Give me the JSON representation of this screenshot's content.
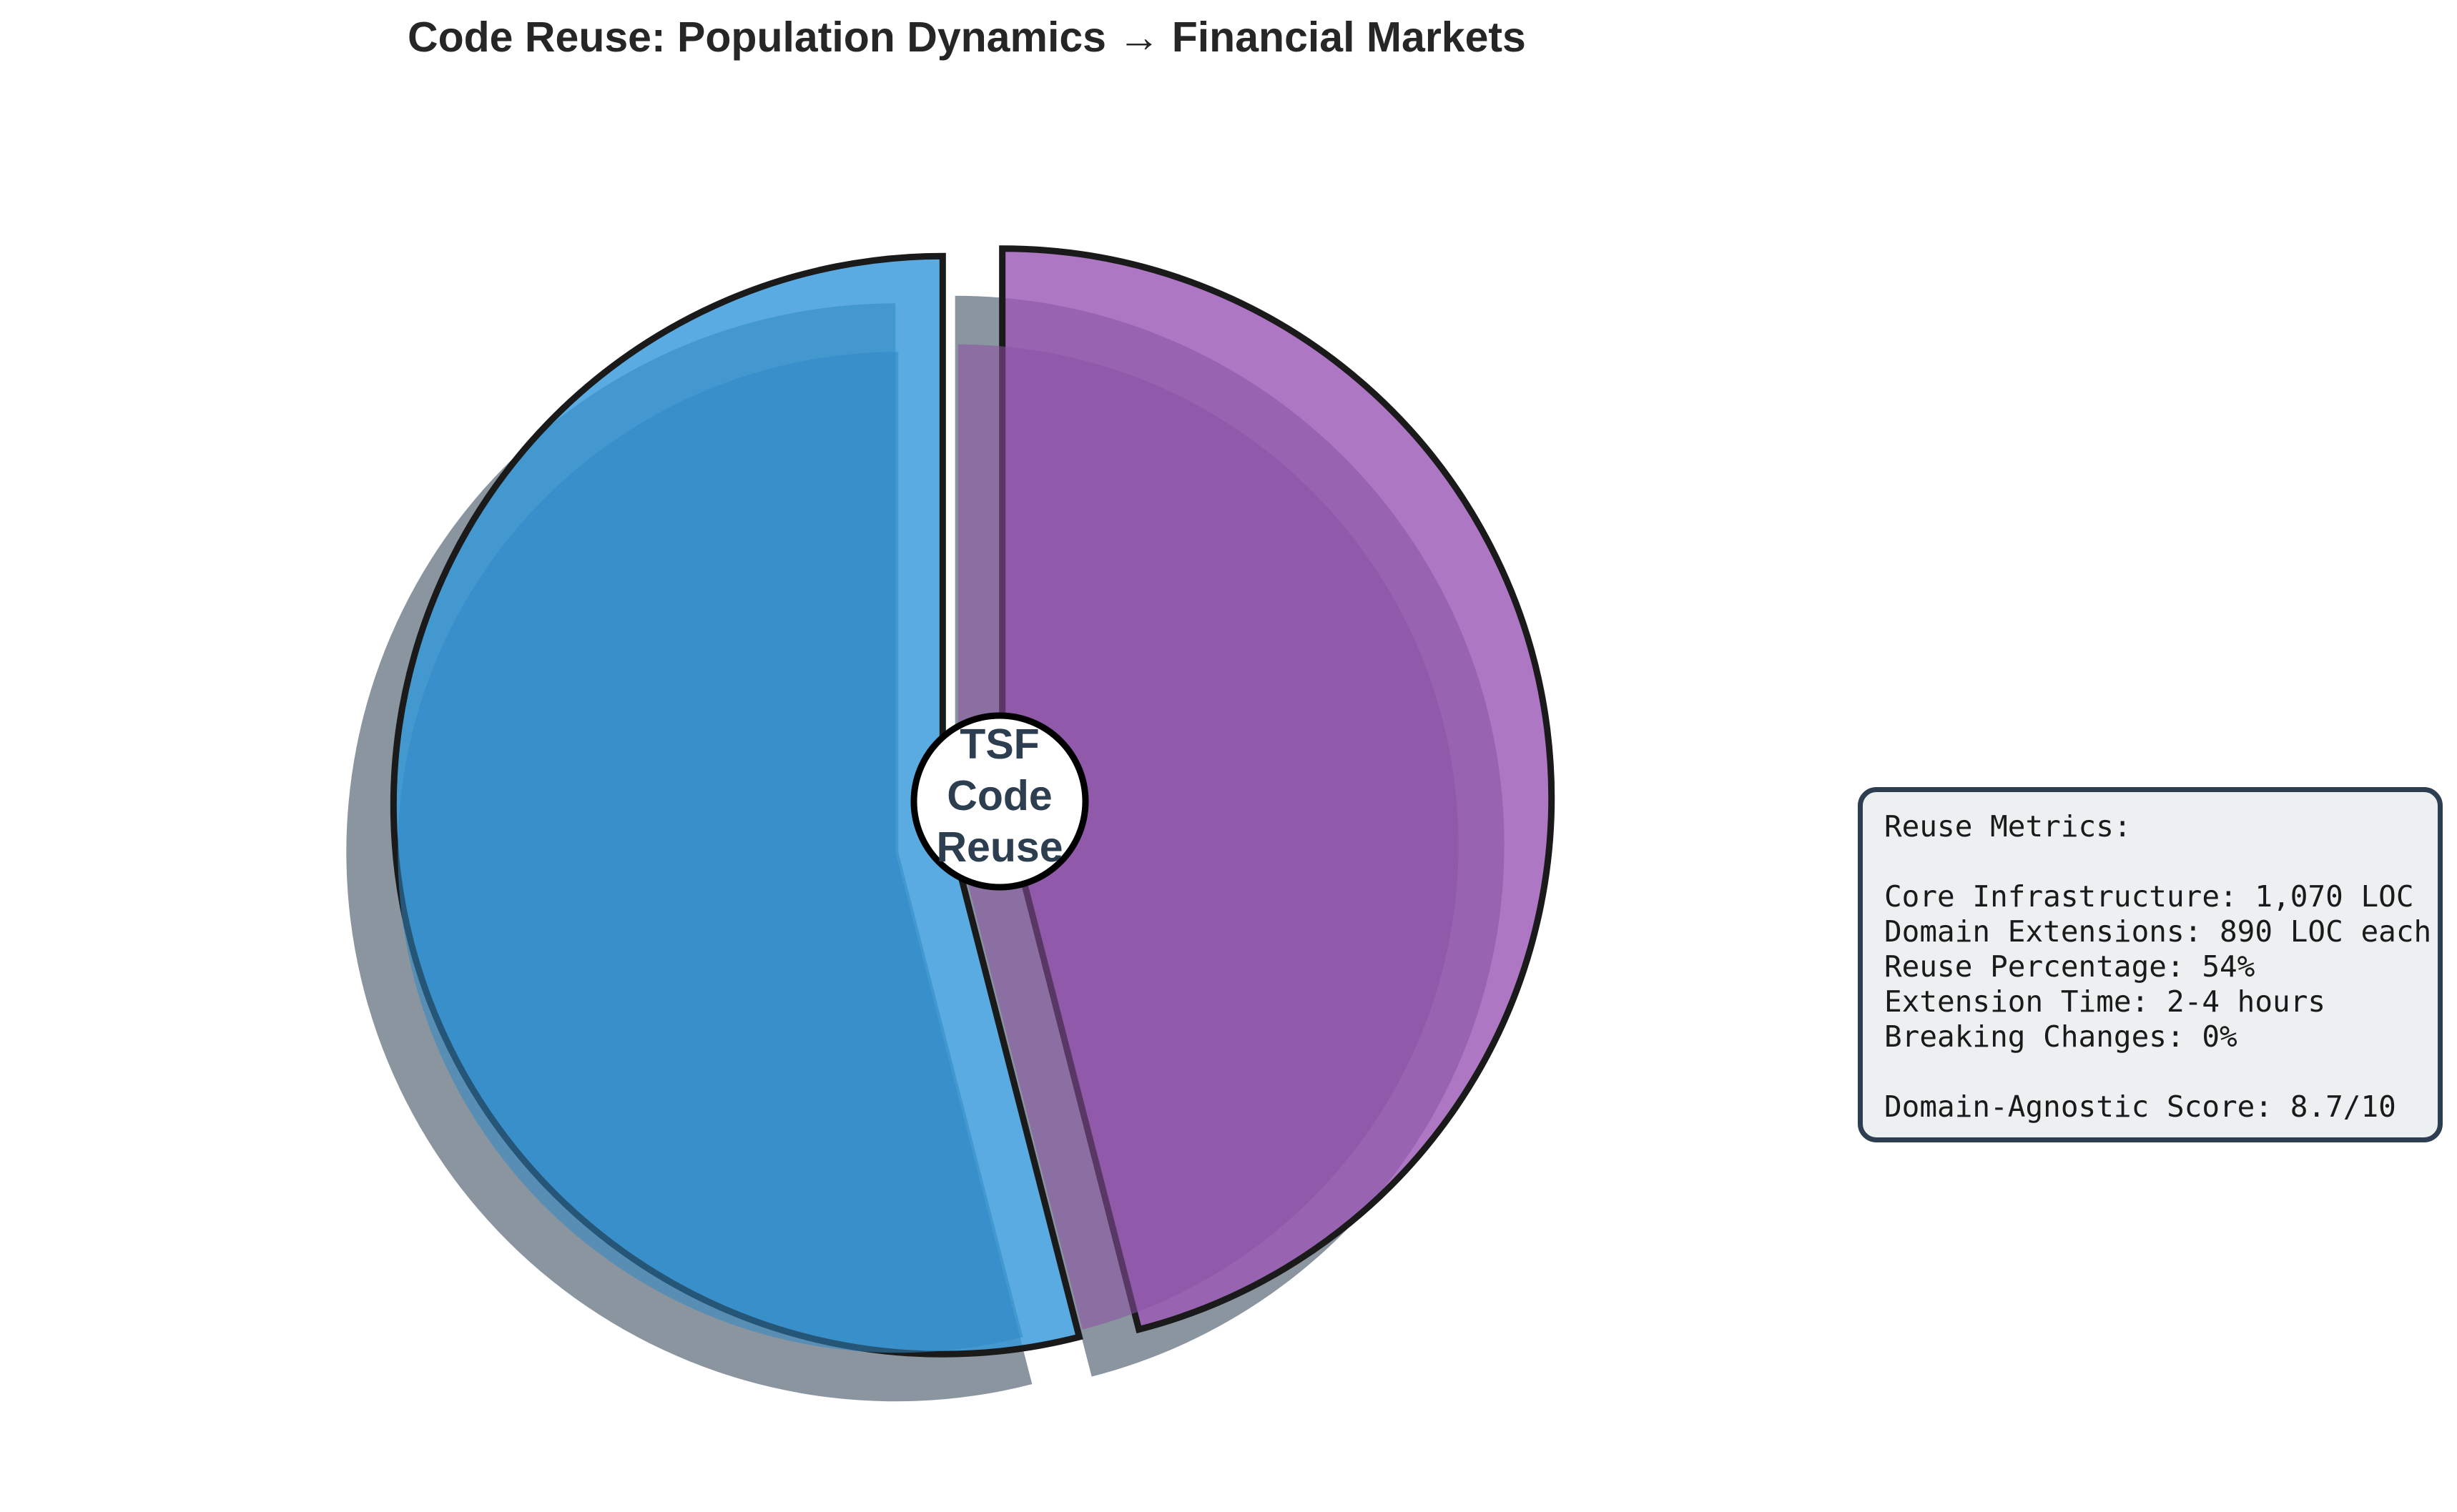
{
  "chart_data": {
    "type": "pie",
    "title": "Code Reuse: Population Dynamics → Financial Markets",
    "center_label": [
      "TSF",
      "Code",
      "Reuse"
    ],
    "slices": [
      {
        "value": 54,
        "color": "#3498db"
      },
      {
        "value": 46,
        "color": "#9b59b6"
      }
    ],
    "start_angle_deg": 90,
    "direction": "counterclockwise",
    "explode": true,
    "shadow": true,
    "legend": "none"
  },
  "metrics": {
    "heading": "Reuse Metrics:",
    "lines": [
      "Core Infrastructure: 1,070 LOC",
      "Domain Extensions: 890 LOC each",
      "Reuse Percentage: 54%",
      "Extension Time: 2-4 hours",
      "Breaking Changes: 0%"
    ],
    "score": "Domain-Agnostic Score: 8.7/10"
  },
  "colors": {
    "shadow": "#2c3e50",
    "edge": "#1a1a1a",
    "box_border": "#2c3e50",
    "box_bg": "#ecf0f1"
  }
}
